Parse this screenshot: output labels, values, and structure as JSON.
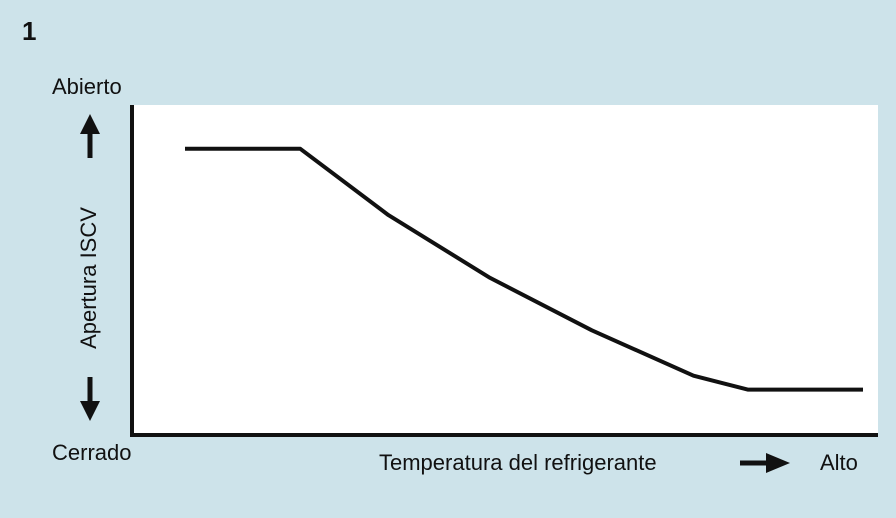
{
  "figure": {
    "number": "1"
  },
  "chart_data": {
    "type": "line",
    "title": "",
    "xlabel": "Temperatura del refrigerante",
    "x_high_label": "Alto",
    "ylabel": "Apertura ISCV",
    "y_high_label": "Abierto",
    "y_low_label": "Cerrado",
    "xlim": [
      0,
      100
    ],
    "ylim": [
      0,
      100
    ],
    "grid": false,
    "colors": {
      "background": "#cde3ea",
      "plot_area": "#ffffff",
      "line": "#111111"
    },
    "series": [
      {
        "x": [
          0,
          17,
          30,
          45,
          60,
          75,
          83,
          100
        ],
        "y": [
          82,
          82,
          63,
          45,
          30,
          17,
          13,
          13
        ]
      }
    ]
  }
}
